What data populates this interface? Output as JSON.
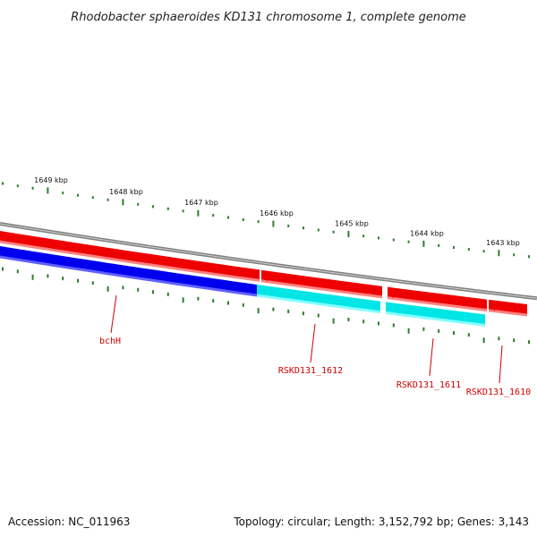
{
  "title": "Rhodobacter sphaeroides KD131 chromosome 1, complete genome",
  "footer": {
    "accession": "Accession: NC_011963",
    "summary": "Topology: circular; Length: 3,152,792 bp; Genes: 3,143"
  },
  "colors": {
    "backbone": "#808080",
    "forward_gene": "#ee0000",
    "reverse_gene": "#0000ee",
    "reverse_gene_alt": "#00e5e5",
    "tick": "#2e7d2e",
    "label": "#cc0000"
  },
  "outer_ticks": [
    {
      "label": "1649 kbp"
    },
    {
      "label": "1648 kbp"
    },
    {
      "label": "1647 kbp"
    },
    {
      "label": "1646 kbp"
    },
    {
      "label": "1645 kbp"
    },
    {
      "label": "1644 kbp"
    },
    {
      "label": "1643 kbp"
    }
  ],
  "genes": [
    {
      "label": "bchH",
      "strand": "reverse",
      "color_key": "reverse_gene"
    },
    {
      "label": "RSKD131_1612",
      "strand": "reverse",
      "color_key": "reverse_gene_alt"
    },
    {
      "label": "RSKD131_1611",
      "strand": "reverse",
      "color_key": "reverse_gene_alt"
    },
    {
      "label": "RSKD131_1610",
      "strand": "forward",
      "color_key": "forward_gene"
    }
  ]
}
